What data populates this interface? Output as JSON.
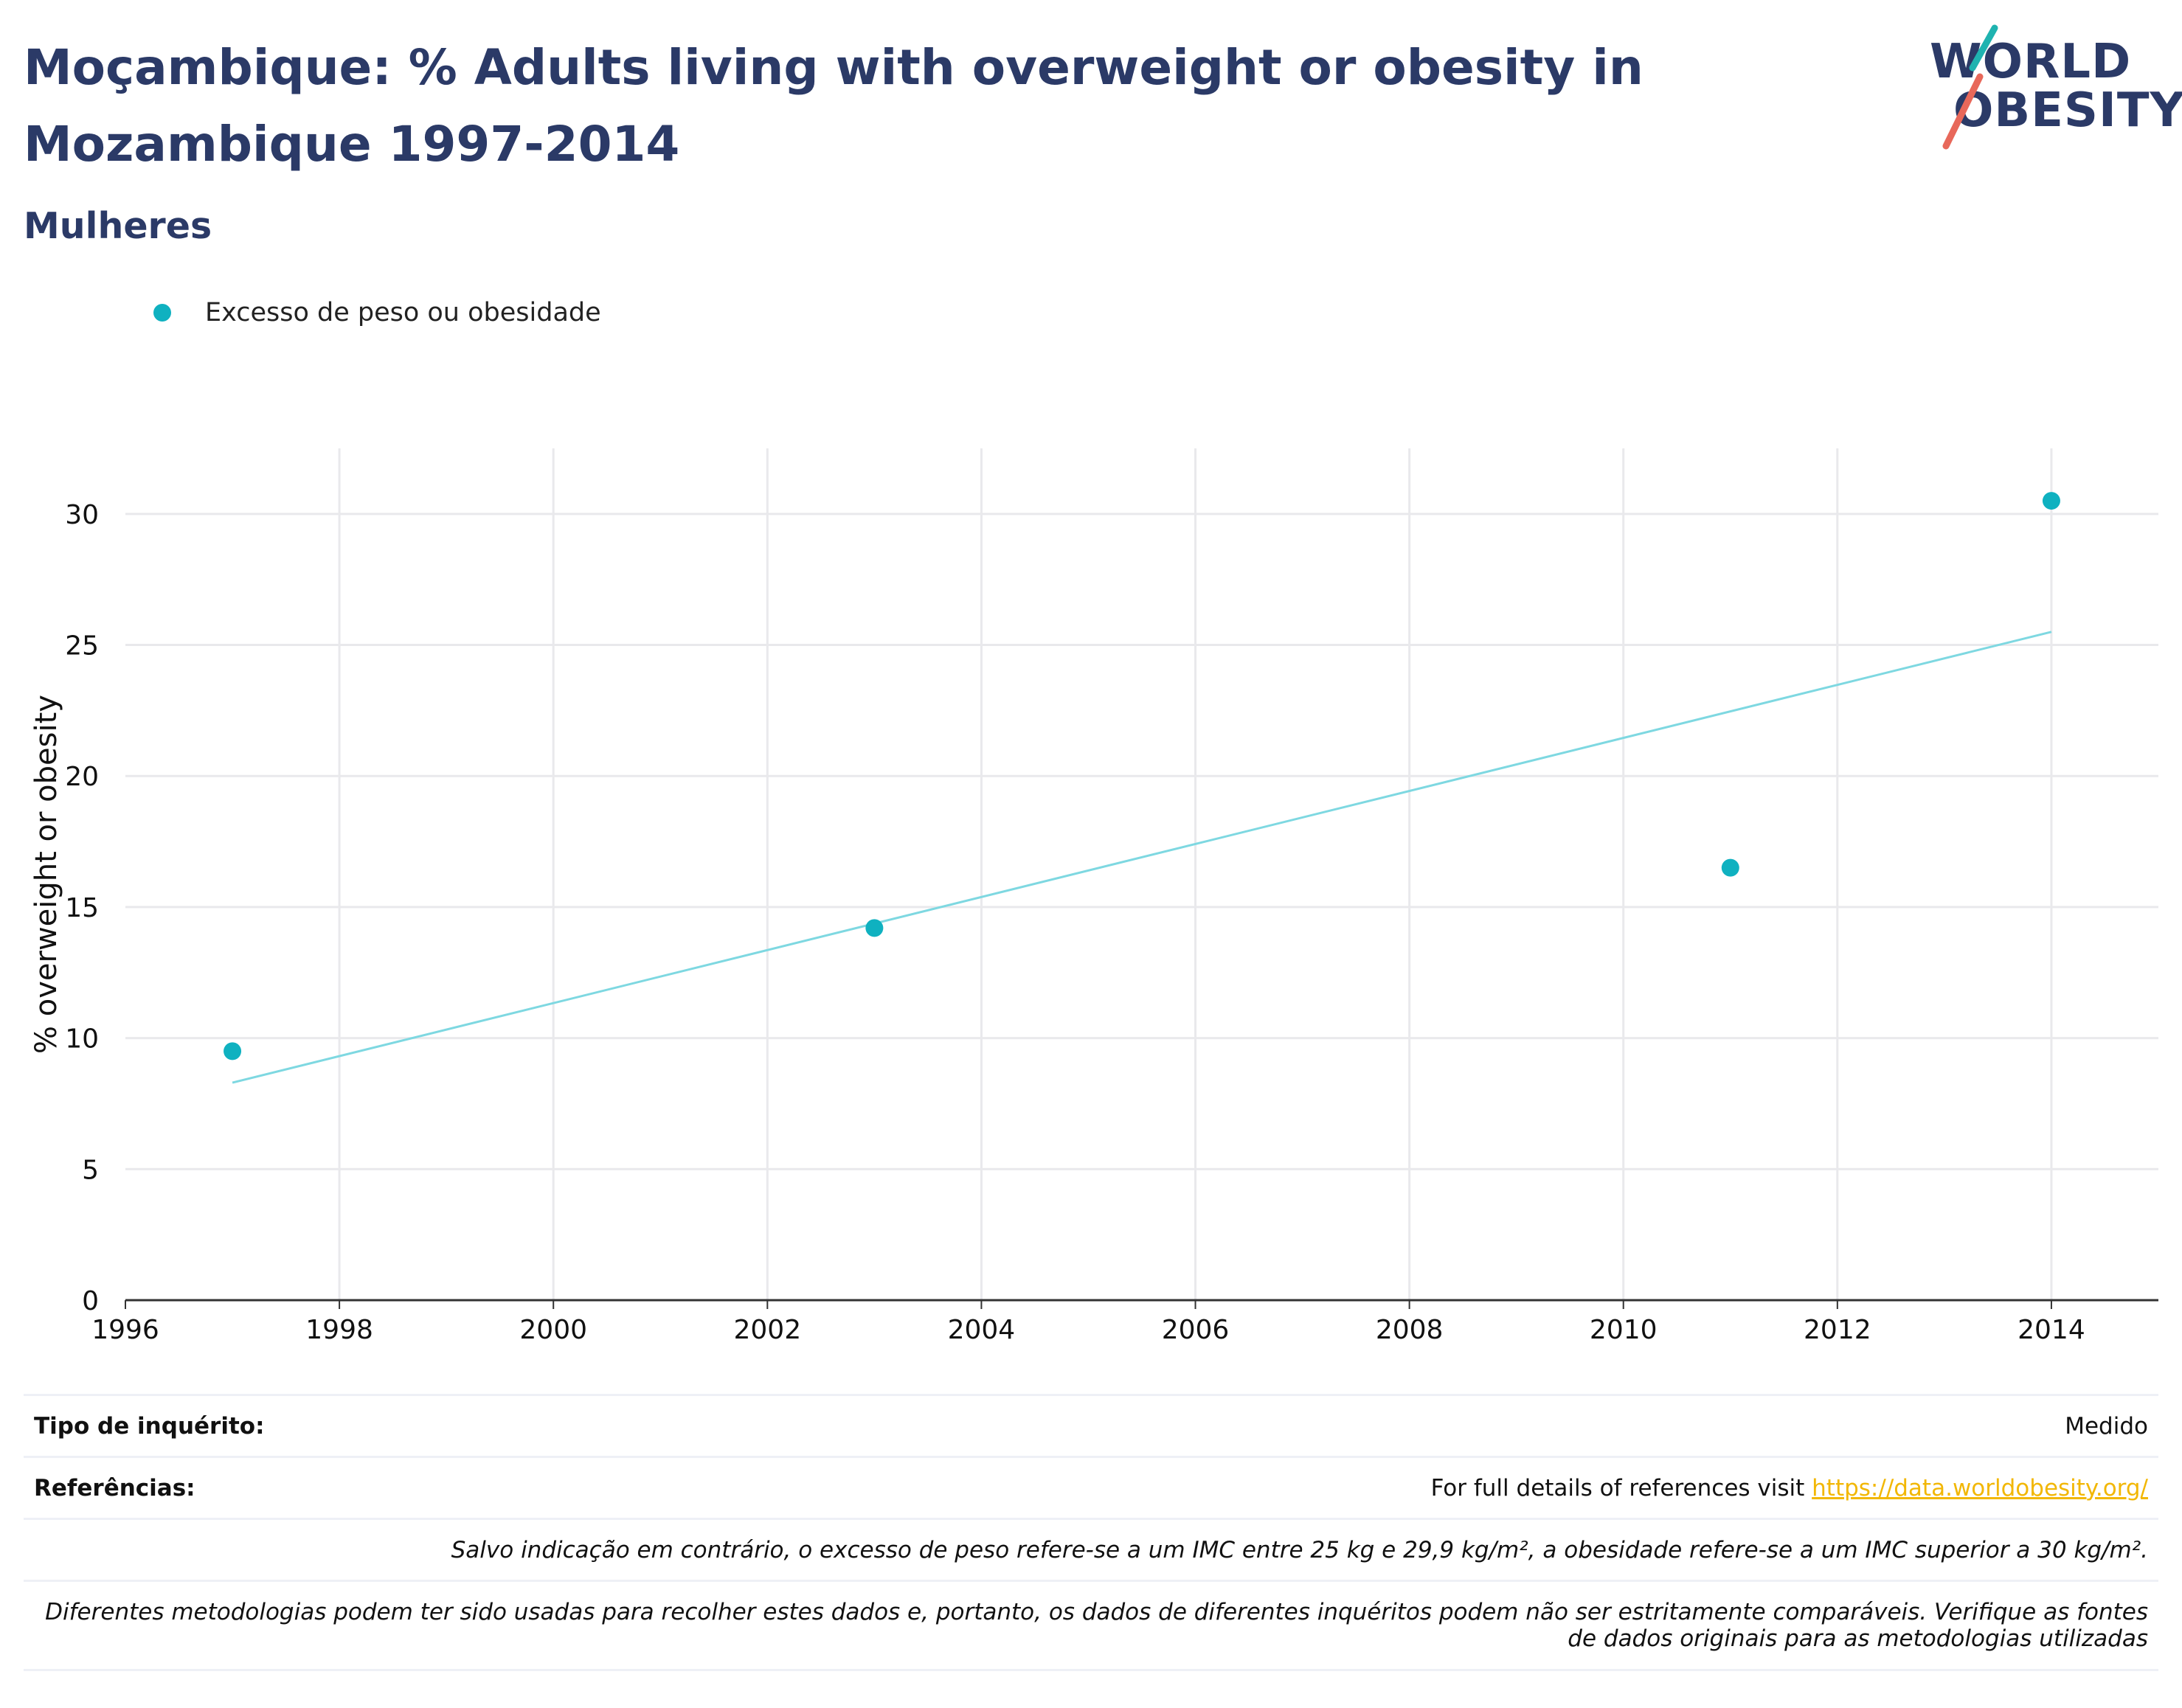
{
  "header": {
    "title": "Moçambique: % Adults living with overweight or obesity in Mozambique 1997-2014",
    "subtitle": "Mulheres"
  },
  "logo": {
    "line1": "WORLD",
    "line2": "OBESITY"
  },
  "colors": {
    "series": "#0fb1c0",
    "trend": "#7ed8e1",
    "title": "#2b3a67",
    "link": "#f2b705",
    "accent_red": "#e8685a",
    "accent_teal": "#1fb3b0"
  },
  "chart_data": {
    "type": "scatter",
    "title": "",
    "xlabel": "",
    "ylabel": "% overweight or obesity",
    "xlim": [
      1996,
      2015
    ],
    "ylim": [
      0,
      32.5
    ],
    "x_ticks": [
      "1996",
      "1998",
      "2000",
      "2002",
      "2004",
      "2006",
      "2008",
      "2010",
      "2012",
      "2014"
    ],
    "y_ticks": [
      "0",
      "5",
      "10",
      "15",
      "20",
      "25",
      "30"
    ],
    "grid": true,
    "legend_position": "top-left",
    "series": [
      {
        "name": "Excesso de peso ou obesidade",
        "points": [
          {
            "x": 1997,
            "y": 9.5
          },
          {
            "x": 2003,
            "y": 14.2
          },
          {
            "x": 2011,
            "y": 16.5
          },
          {
            "x": 2014,
            "y": 30.5
          }
        ]
      }
    ],
    "trendline": {
      "x": [
        1997,
        2014
      ],
      "y": [
        8.3,
        25.5
      ]
    }
  },
  "footer": {
    "survey_type_label": "Tipo de inquérito:",
    "survey_type_value": "Medido",
    "references_label": "Referências:",
    "references_text": "For full details of references visit ",
    "references_link": "https://data.worldobesity.org/",
    "note1": "Salvo indicação em contrário, o excesso de peso refere-se a um IMC entre 25 kg e 29,9 kg/m², a obesidade refere-se a um IMC superior a 30 kg/m².",
    "note2_line1": "Diferentes metodologias podem ter sido usadas para recolher estes dados e, portanto, os dados de diferentes inquéritos podem não ser estritamente comparáveis. Verifique as fontes",
    "note2_line2": "de dados originais para as metodologias utilizadas"
  }
}
